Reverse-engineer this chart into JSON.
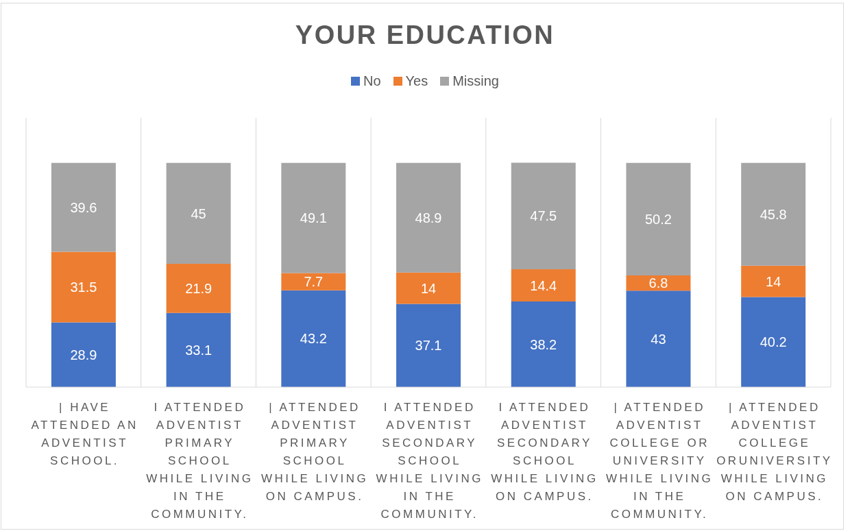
{
  "chart_data": {
    "type": "bar",
    "title": "YOUR EDUCATION",
    "categories": [
      "| HAVE ATTENDED AN ADVENTIST SCHOOL.",
      "I ATTENDED ADVENTIST PRIMARY SCHOOL WHILE LIVING IN THE COMMUNITY.",
      "| ATTENDED ADVENTIST PRIMARY SCHOOL WHILE LIVING ON CAMPUS.",
      "I ATTENDED ADVENTIST SECONDARY SCHOOL WHILE LIVING IN THE COMMUNITY.",
      "I ATTENDED ADVENTIST SECONDARY SCHOOL WHILE LIVING ON CAMPUS.",
      "| ATTENDED ADVENTIST COLLEGE OR UNIVERSITY WHILE LIVING IN THE COMMUNITY.",
      "| ATTENDED ADVENTIST COLLEGE ORUNIVERSITY WHILE LIVING ON CAMPUS."
    ],
    "series": [
      {
        "name": "No",
        "color": "#4472c4",
        "values": [
          28.9,
          33.1,
          43.2,
          37.1,
          38.2,
          43,
          40.2
        ]
      },
      {
        "name": "Yes",
        "color": "#ed7d31",
        "values": [
          31.5,
          21.9,
          7.7,
          14,
          14.4,
          6.8,
          14
        ]
      },
      {
        "name": "Missing",
        "color": "#a5a5a5",
        "values": [
          39.6,
          45,
          49.1,
          48.9,
          47.5,
          50.2,
          45.8
        ]
      }
    ],
    "stacked": true,
    "data_labels": true,
    "legend": "top",
    "grid": "x"
  }
}
